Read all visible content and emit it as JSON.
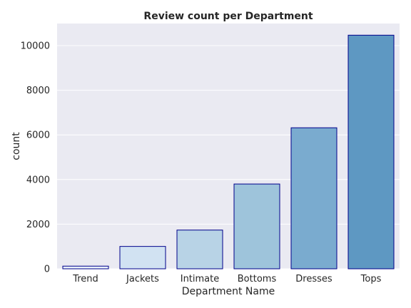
{
  "chart_data": {
    "type": "bar",
    "title": "Review count per Department",
    "xlabel": "Department Name",
    "ylabel": "count",
    "categories": [
      "Trend",
      "Jackets",
      "Intimate",
      "Bottoms",
      "Dresses",
      "Tops"
    ],
    "values": [
      119,
      1002,
      1735,
      3799,
      6319,
      10468
    ],
    "ylim": [
      0,
      10990
    ],
    "yticks": [
      0,
      2000,
      4000,
      6000,
      8000,
      10000
    ],
    "grid": true,
    "colors": {
      "background": "#eaeaf2",
      "grid": "#ffffff",
      "bar_edge": "#00008b",
      "bars": [
        "#e8f1fa",
        "#d1e2f2",
        "#b8d3e6",
        "#9ec4db",
        "#7aabcf",
        "#5e98c2"
      ]
    }
  }
}
